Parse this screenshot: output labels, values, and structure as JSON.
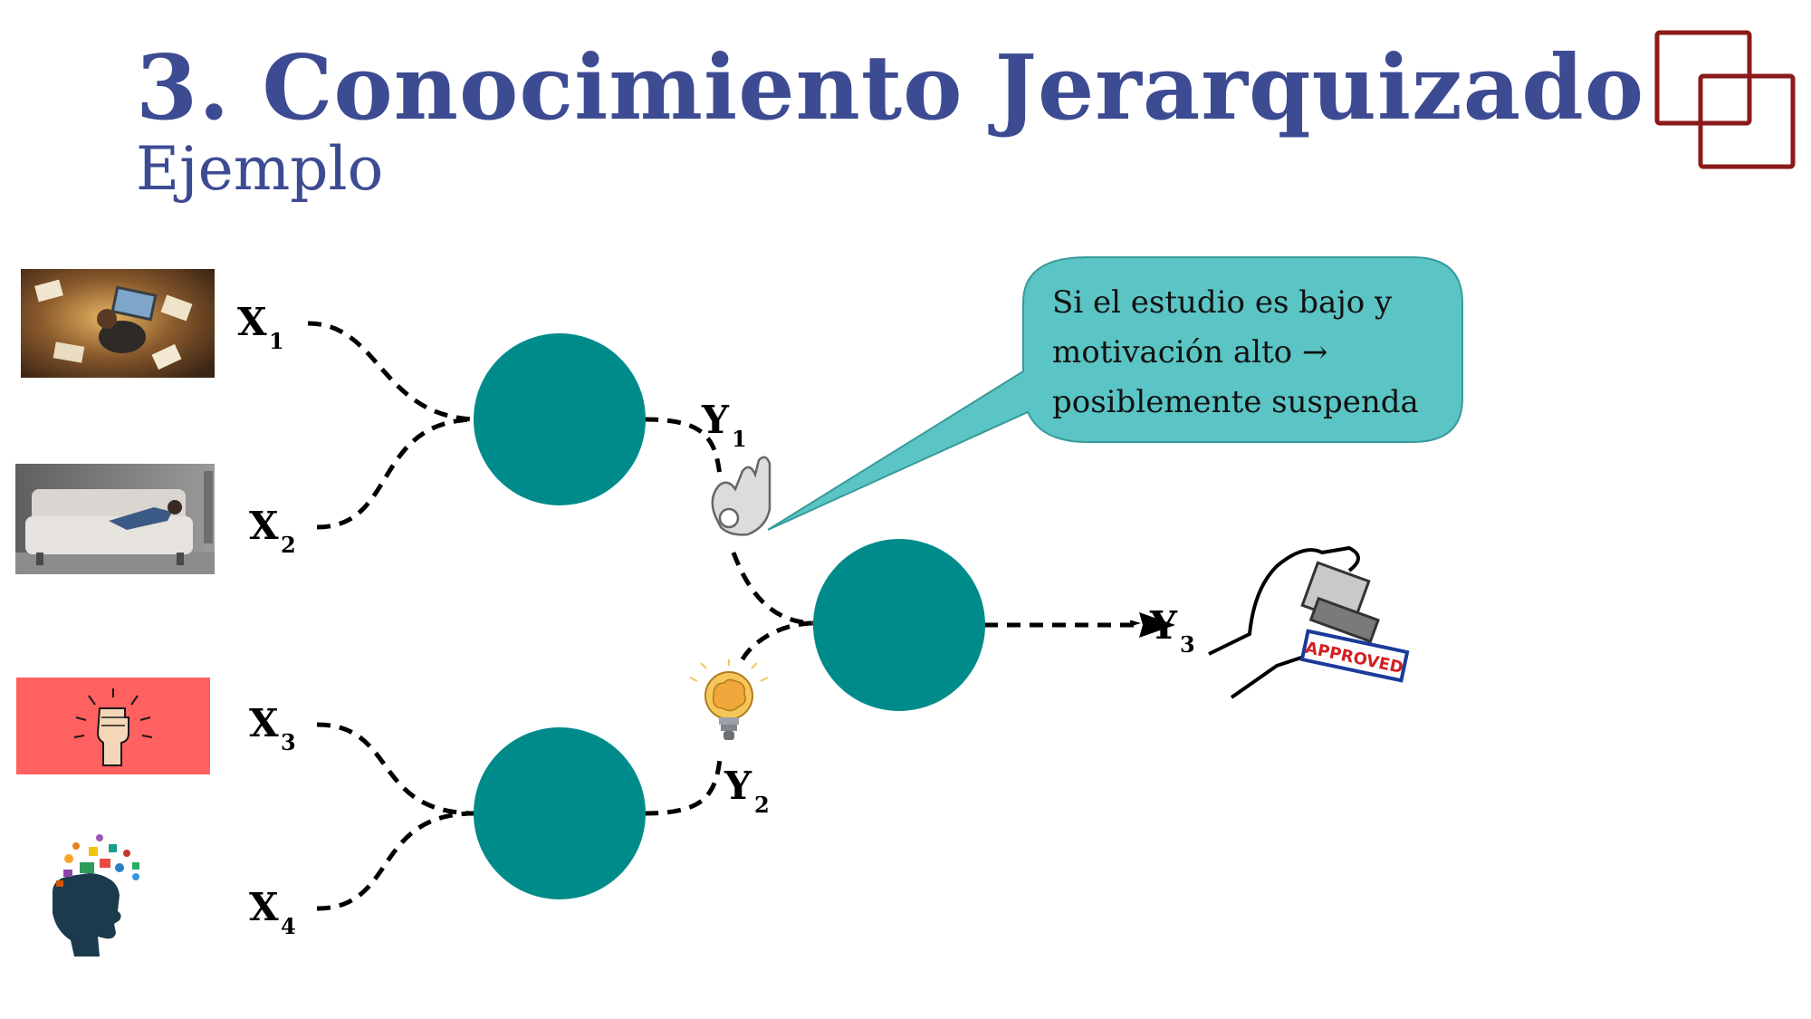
{
  "slide": {
    "title": "3. Conocimiento Jerarquizado",
    "subtitle": "Ejemplo"
  },
  "colors": {
    "title": "#3d4b93",
    "node": "#008b8b",
    "bubble": "#5bc4c4",
    "logo": "#8b1a1a",
    "line": "#000000"
  },
  "inputs": [
    {
      "label": "X",
      "sub": "1",
      "image": "person-studying-laptop-photo"
    },
    {
      "label": "X",
      "sub": "2",
      "image": "person-resting-sofa-photo"
    },
    {
      "label": "X",
      "sub": "3",
      "image": "raised-fist-icon"
    },
    {
      "label": "X",
      "sub": "4",
      "image": "head-with-ideas-icon"
    }
  ],
  "intermediate": [
    {
      "label": "Y",
      "sub": "1",
      "icon": "ok-hand-icon"
    },
    {
      "label": "Y",
      "sub": "2",
      "icon": "lightbulb-brain-icon"
    }
  ],
  "output": {
    "label": "Y",
    "sub": "3",
    "icon": "approved-stamp-icon",
    "stamp_text": "APPROVED"
  },
  "callout": {
    "lines": [
      "Si el estudio es bajo y",
      "motivación alto →",
      "posiblemente suspenda"
    ]
  }
}
